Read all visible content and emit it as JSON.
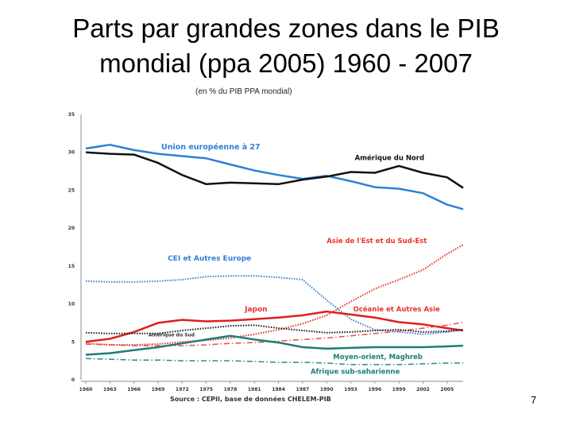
{
  "slide": {
    "title_line1": "Parts par grandes zones dans le PIB",
    "title_line2": "mondial (ppa 2005) 1960 - 2007",
    "unit_note": "(en % du PIB PPA mondial)",
    "page_number": "7"
  },
  "chart_data": {
    "type": "line",
    "title": "Parts par grandes zones dans le PIB mondial (ppa 2005) 1960 - 2007",
    "ylabel": "(en % du PIB PPA mondial)",
    "source": "Source : CEPII, base de données CHELEM-PIB",
    "ylim": [
      0,
      35
    ],
    "xlim": [
      1960,
      2007
    ],
    "y_ticks": [
      0,
      5,
      10,
      15,
      20,
      25,
      30,
      35
    ],
    "x_ticks": [
      1960,
      1963,
      1966,
      1969,
      1972,
      1975,
      1978,
      1981,
      1984,
      1987,
      1990,
      1993,
      1996,
      1999,
      2002,
      2005
    ],
    "grid": false,
    "legend": "labels placed next to each series",
    "x": [
      1960,
      1963,
      1966,
      1969,
      1972,
      1975,
      1978,
      1981,
      1984,
      1987,
      1990,
      1993,
      1996,
      1999,
      2002,
      2005,
      2007
    ],
    "series": [
      {
        "name": "Union européenne à 27",
        "color": "#2f7fd8",
        "style": "solid",
        "width": 2.5,
        "values": [
          30.5,
          31.0,
          30.3,
          29.8,
          29.5,
          29.2,
          28.4,
          27.6,
          27.0,
          26.5,
          26.9,
          26.2,
          25.4,
          25.2,
          24.6,
          23.1,
          22.5
        ]
      },
      {
        "name": "Amérique du Nord",
        "color": "#111111",
        "style": "solid",
        "width": 2.5,
        "values": [
          30.0,
          29.8,
          29.7,
          28.6,
          27.0,
          25.8,
          26.0,
          25.9,
          25.8,
          26.4,
          26.8,
          27.4,
          27.3,
          28.2,
          27.3,
          26.7,
          25.3
        ]
      },
      {
        "name": "Asie de l'Est et du Sud-Est",
        "color": "#e83a2a",
        "style": "dotted",
        "width": 2,
        "values": [
          4.8,
          4.6,
          4.6,
          4.7,
          5.0,
          5.2,
          5.5,
          6.0,
          6.6,
          7.4,
          8.5,
          10.3,
          12.0,
          13.2,
          14.5,
          16.6,
          17.8
        ]
      },
      {
        "name": "CEI et Autres Europe",
        "color": "#4a86c5",
        "style": "dotted",
        "width": 2,
        "values": [
          13.0,
          12.9,
          12.9,
          13.0,
          13.2,
          13.6,
          13.7,
          13.7,
          13.5,
          13.2,
          10.5,
          8.0,
          6.6,
          6.3,
          6.0,
          6.3,
          6.6
        ]
      },
      {
        "name": "Japon",
        "color": "#e01e1e",
        "style": "solid",
        "width": 2.5,
        "values": [
          5.0,
          5.4,
          6.3,
          7.5,
          7.9,
          7.7,
          7.8,
          8.0,
          8.2,
          8.5,
          9.0,
          8.6,
          8.2,
          7.6,
          7.3,
          6.8,
          6.5
        ]
      },
      {
        "name": "Océanie et Autres Asie",
        "color": "#e35050",
        "style": "dashdot",
        "width": 1.5,
        "values": [
          4.7,
          4.6,
          4.5,
          4.5,
          4.5,
          4.6,
          4.8,
          4.9,
          5.1,
          5.3,
          5.5,
          5.8,
          6.1,
          6.4,
          6.8,
          7.2,
          7.6
        ]
      },
      {
        "name": "Amérique du Sud",
        "color": "#222222",
        "style": "dotted",
        "width": 2,
        "values": [
          6.2,
          6.1,
          6.1,
          6.1,
          6.5,
          6.8,
          7.1,
          7.2,
          6.8,
          6.5,
          6.2,
          6.3,
          6.5,
          6.6,
          6.3,
          6.4,
          6.6
        ]
      },
      {
        "name": "Moyen-orient, Maghreb",
        "color": "#1e7d78",
        "style": "solid",
        "width": 2.5,
        "values": [
          3.3,
          3.5,
          3.9,
          4.3,
          4.8,
          5.3,
          5.8,
          5.3,
          4.9,
          4.3,
          4.1,
          4.2,
          4.3,
          4.3,
          4.3,
          4.4,
          4.5
        ]
      },
      {
        "name": "Afrique sub-saharienne",
        "color": "#2a8b86",
        "style": "dashdot",
        "width": 1.5,
        "values": [
          2.8,
          2.7,
          2.6,
          2.6,
          2.5,
          2.5,
          2.5,
          2.4,
          2.3,
          2.3,
          2.2,
          2.0,
          2.0,
          2.0,
          2.1,
          2.2,
          2.2
        ]
      }
    ],
    "labels": [
      {
        "series": "Union européenne à 27",
        "text": "Union européenne à 27",
        "color": "#2f7fd8",
        "size": 9.5,
        "at_x": 1969.4,
        "at_y": 30.4
      },
      {
        "name_hint": "n",
        "series": "Amérique du Nord",
        "text": "Amérique du Nord",
        "color": "#111111",
        "size": 8.5,
        "at_x": 1993.5,
        "at_y": 29.0
      },
      {
        "series": "Asie de l'Est et du Sud-Est",
        "text": "Asie de l'Est et du Sud-Est",
        "color": "#e8342a",
        "size": 8.5,
        "at_x": 1990.0,
        "at_y": 18.0
      },
      {
        "series": "CEI et Autres Europe",
        "text": "CEI et Autres Europe",
        "color": "#2f7fd8",
        "size": 9,
        "at_x": 1970.2,
        "at_y": 15.7
      },
      {
        "series": "Japon",
        "text": "Japon",
        "color": "#e8342a",
        "size": 9,
        "at_x": 1979.8,
        "at_y": 9.0
      },
      {
        "series": "Océanie et Autres Asie",
        "text": "Océanie et Autres Asie",
        "color": "#e8342a",
        "size": 8.5,
        "at_x": 1993.3,
        "at_y": 9.0
      },
      {
        "series": "Amérique du Sud",
        "text": "Amérique du Sud",
        "color": "#333333",
        "size": 6,
        "at_x": 1967.8,
        "at_y": 5.7
      },
      {
        "series": "Moyen-orient, Maghreb",
        "text": "Moyen-orient, Maghreb",
        "color": "#1e7d78",
        "size": 8.5,
        "at_x": 1990.8,
        "at_y": 2.7
      },
      {
        "series": "Afrique sub-saharienne",
        "text": "Afrique sub-saharienne",
        "color": "#1e7d78",
        "size": 8.5,
        "at_x": 1988.0,
        "at_y": 0.8
      }
    ]
  }
}
